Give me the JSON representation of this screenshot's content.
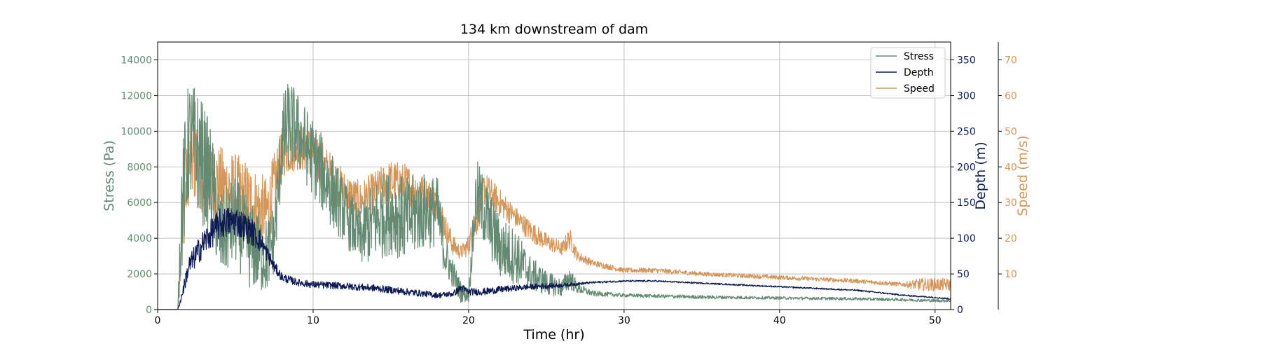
{
  "chart_data": {
    "type": "line",
    "title": "134 km downstream of dam",
    "xlabel": "Time (hr)",
    "xlim": [
      0,
      51
    ],
    "xticks": [
      0,
      10,
      20,
      30,
      40,
      50
    ],
    "grid": true,
    "legend_position": "top-right",
    "axes": [
      {
        "id": "stress",
        "label": "Stress (Pa)",
        "side": "left",
        "ylim": [
          0,
          15000
        ],
        "ticks": [
          0,
          2000,
          4000,
          6000,
          8000,
          10000,
          12000,
          14000
        ],
        "color": "#658a73"
      },
      {
        "id": "depth",
        "label": "Depth (m)",
        "side": "right",
        "ylim": [
          0,
          375
        ],
        "ticks": [
          0,
          50,
          100,
          150,
          200,
          250,
          300,
          350
        ],
        "color": "#0d1b52"
      },
      {
        "id": "speed",
        "label": "Speed (m/s)",
        "side": "right-outer",
        "ylim": [
          0,
          75
        ],
        "ticks": [
          10,
          20,
          30,
          40,
          50,
          60,
          70
        ],
        "color": "#d4975a"
      }
    ],
    "series": [
      {
        "name": "Stress",
        "axis": "stress",
        "color": "#658a73",
        "x": [
          0,
          1.3,
          1.5,
          2,
          2.5,
          3,
          3.5,
          4,
          5,
          6,
          7,
          7.5,
          8,
          8.5,
          9,
          10,
          11,
          12,
          13,
          14,
          15,
          16,
          17,
          18,
          18.5,
          19,
          19.5,
          20,
          20.5,
          21,
          22,
          23,
          24,
          25,
          26,
          26.5,
          27,
          28,
          30,
          35,
          40,
          45,
          48,
          50,
          51
        ],
        "y": [
          0,
          0,
          5000,
          9500,
          9000,
          8000,
          7000,
          4000,
          5000,
          3500,
          3000,
          4000,
          9500,
          10500,
          10000,
          8500,
          7000,
          5500,
          4000,
          5000,
          5500,
          5000,
          5500,
          5500,
          3000,
          2000,
          1000,
          800,
          6500,
          5500,
          3500,
          3000,
          2000,
          1500,
          1200,
          1800,
          1200,
          900,
          800,
          700,
          650,
          600,
          550,
          500,
          500
        ],
        "noise": [
          0,
          0,
          3500,
          3500,
          3500,
          3500,
          3000,
          2500,
          2500,
          2500,
          2200,
          2000,
          2500,
          2500,
          2200,
          2200,
          2200,
          1800,
          1600,
          2400,
          2400,
          2400,
          2200,
          2000,
          1200,
          800,
          600,
          400,
          2000,
          2000,
          1800,
          1600,
          1000,
          700,
          500,
          700,
          300,
          150,
          100,
          100,
          80,
          80,
          80,
          80,
          80
        ]
      },
      {
        "name": "Depth",
        "axis": "depth",
        "color": "#0d1b52",
        "x": [
          0,
          1.3,
          1.5,
          2,
          3,
          4,
          5,
          6,
          6.5,
          7,
          7.5,
          8,
          9,
          10,
          12,
          14,
          16,
          18,
          19,
          19.5,
          20,
          21,
          22,
          23,
          24,
          25,
          26,
          27,
          28,
          30,
          32,
          35,
          40,
          45,
          48,
          50,
          51
        ],
        "y": [
          0,
          0,
          15,
          60,
          95,
          120,
          125,
          110,
          100,
          80,
          60,
          45,
          38,
          35,
          33,
          30,
          25,
          20,
          22,
          30,
          25,
          25,
          28,
          30,
          32,
          33,
          34,
          36,
          38,
          40,
          40,
          37,
          32,
          27,
          20,
          17,
          15
        ],
        "noise": [
          0,
          0,
          5,
          15,
          20,
          22,
          22,
          20,
          18,
          12,
          8,
          6,
          5,
          5,
          5,
          5,
          5,
          4,
          4,
          6,
          5,
          5,
          5,
          4,
          4,
          4,
          3,
          2,
          1.5,
          1.2,
          1.2,
          1,
          1,
          1,
          1,
          1,
          1
        ]
      },
      {
        "name": "Speed",
        "axis": "speed",
        "color": "#d4975a",
        "x": [
          0,
          1.3,
          1.5,
          2,
          2.5,
          3,
          4,
          5,
          6,
          7,
          7.5,
          8,
          9,
          10,
          11,
          12,
          13,
          14,
          15,
          16,
          17,
          18,
          18.5,
          19,
          19.5,
          20,
          20.5,
          21,
          22,
          23,
          24,
          25,
          26,
          26.5,
          27,
          28,
          29,
          30,
          32,
          35,
          40,
          45,
          48,
          49,
          50,
          51
        ],
        "y": [
          0,
          0,
          20,
          40,
          42,
          38,
          35,
          33,
          30,
          27,
          34,
          44,
          46,
          44,
          38,
          33,
          30,
          33,
          36,
          35,
          33,
          30,
          23,
          18,
          16,
          18,
          25,
          34,
          30,
          26,
          22,
          19,
          17,
          20,
          15,
          13,
          12,
          11,
          11,
          10,
          9,
          8,
          7,
          7,
          7,
          7
        ],
        "noise": [
          0,
          0,
          10,
          11,
          12,
          12,
          11,
          11,
          11,
          10,
          10,
          7,
          7,
          7,
          7,
          6,
          6,
          6,
          6,
          6,
          5,
          5,
          4,
          3,
          2,
          3,
          5,
          5,
          4,
          3,
          3,
          2.5,
          2,
          3,
          1.5,
          1,
          0.8,
          0.7,
          0.7,
          0.6,
          0.6,
          0.6,
          0.6,
          1.8,
          1.8,
          1.8
        ]
      }
    ]
  }
}
